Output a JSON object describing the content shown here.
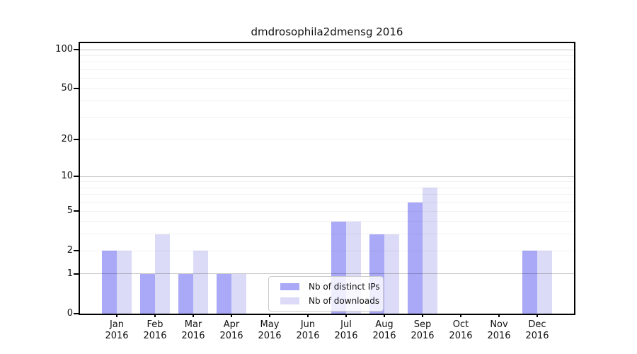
{
  "chart_data": {
    "type": "bar",
    "title": "dmdrosophila2dmensg 2016",
    "categories": [
      "Jan",
      "Feb",
      "Mar",
      "Apr",
      "May",
      "Jun",
      "Jul",
      "Aug",
      "Sep",
      "Oct",
      "Nov",
      "Dec"
    ],
    "year_label": "2016",
    "series": [
      {
        "name": "Nb of distinct IPs",
        "color": "#a9a9f7",
        "values": [
          2,
          1,
          1,
          1,
          0,
          0,
          4,
          3,
          6,
          0,
          0,
          2
        ]
      },
      {
        "name": "Nb of downloads",
        "color": "#dbdbf8",
        "values": [
          2,
          3,
          2,
          1,
          0,
          0,
          4,
          3,
          8,
          0,
          0,
          2
        ]
      }
    ],
    "y_axis": {
      "scale": "log1p",
      "ticks": [
        0,
        1,
        2,
        5,
        10,
        20,
        50,
        100
      ],
      "major_gridlines": [
        1,
        10,
        100
      ],
      "minor_gridlines": [
        2,
        3,
        4,
        5,
        6,
        7,
        8,
        9,
        20,
        30,
        40,
        50,
        60,
        70,
        80,
        90
      ],
      "max": 112
    },
    "x_axis": {
      "tick_label_format": "month-over-year"
    },
    "legend_position": "lower center (inside axes)",
    "grid": true,
    "background": "#ffffff"
  }
}
